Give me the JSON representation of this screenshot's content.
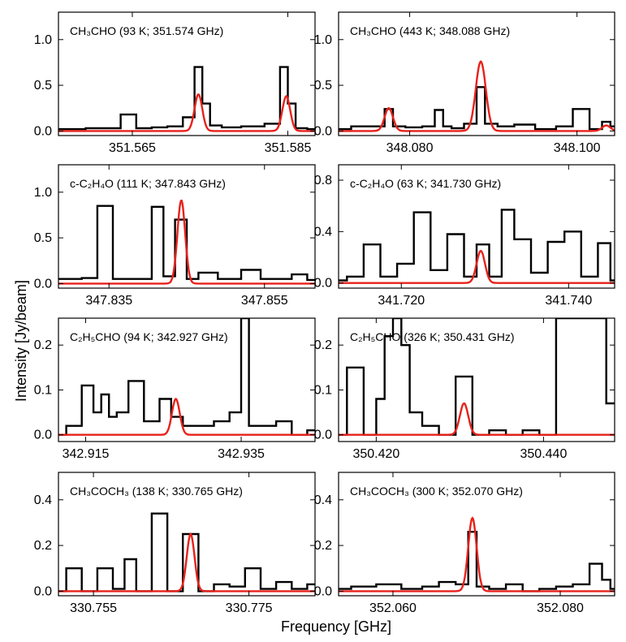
{
  "figure": {
    "xlabel": "Frequency [GHz]",
    "ylabel": "Intensity [Jy/beam]"
  },
  "colors": {
    "observed": "#000000",
    "model": "#e8211b"
  },
  "chart_data": [
    {
      "type": "line",
      "title": "CH₃CHO (93 K; 351.574 GHz)",
      "xlim": [
        351.5555,
        351.5885
      ],
      "ylim": [
        -0.05,
        1.3
      ],
      "xticks": [
        "351.565",
        "351.585"
      ],
      "yticks": [
        "0.0",
        "0.5",
        "1.0"
      ],
      "series": [
        {
          "name": "observed",
          "x": [
            351.5555,
            351.5625,
            351.5645,
            351.5665,
            351.5685,
            351.5705,
            351.5725,
            351.5735,
            351.5745,
            351.5755,
            351.5775,
            351.5805,
            351.5835,
            351.5845,
            351.5855,
            351.5865,
            351.5885
          ],
          "y": [
            0.02,
            0.03,
            0.18,
            0.03,
            0.04,
            0.05,
            0.15,
            0.7,
            0.3,
            0.06,
            0.04,
            0.05,
            0.08,
            0.7,
            0.3,
            0.03,
            0.02
          ]
        },
        {
          "name": "model",
          "lines": [
            {
              "center": 351.5735,
              "peak": 0.4,
              "width": 0.0005
            },
            {
              "center": 351.5848,
              "peak": 0.38,
              "width": 0.0005
            }
          ]
        }
      ]
    },
    {
      "type": "line",
      "title": "CH₃CHO (443 K; 348.088 GHz)",
      "xlim": [
        348.0715,
        348.1045
      ],
      "ylim": [
        -0.05,
        1.3
      ],
      "xticks": [
        "348.080",
        "348.100"
      ],
      "yticks": [
        "0.0",
        "0.5",
        "1.0"
      ],
      "series": [
        {
          "name": "observed",
          "x": [
            348.0715,
            348.0745,
            348.0765,
            348.0775,
            348.0785,
            348.0805,
            348.0825,
            348.0835,
            348.0845,
            348.0855,
            348.0875,
            348.0885,
            348.0895,
            348.0915,
            348.0935,
            348.0965,
            348.0985,
            348.1005,
            348.1025,
            348.1035,
            348.1045
          ],
          "y": [
            0.02,
            0.05,
            0.05,
            0.24,
            0.05,
            0.04,
            0.05,
            0.23,
            0.05,
            0.03,
            0.08,
            0.48,
            0.08,
            0.05,
            0.07,
            0.02,
            0.05,
            0.24,
            0.02,
            0.1,
            0.05
          ]
        },
        {
          "name": "model",
          "lines": [
            {
              "center": 348.0775,
              "peak": 0.25,
              "width": 0.0005
            },
            {
              "center": 348.0885,
              "peak": 0.76,
              "width": 0.0006
            },
            {
              "center": 348.1035,
              "peak": 0.06,
              "width": 0.0005
            }
          ]
        }
      ]
    },
    {
      "type": "line",
      "title": "c-C₂H₄O (111 K; 347.843 GHz)",
      "xlim": [
        347.8285,
        347.8615
      ],
      "ylim": [
        -0.05,
        1.3
      ],
      "xticks": [
        "347.835",
        "347.855"
      ],
      "yticks": [
        "0.0",
        "0.5",
        "1.0"
      ],
      "series": [
        {
          "name": "observed",
          "x": [
            347.8285,
            347.8305,
            347.8325,
            347.8345,
            347.8365,
            347.8395,
            347.8415,
            347.8425,
            347.8445,
            347.8455,
            347.8475,
            347.8505,
            347.8535,
            347.8555,
            347.8575,
            347.8595,
            347.8615
          ],
          "y": [
            0.05,
            0.05,
            0.06,
            0.85,
            0.05,
            0.05,
            0.84,
            0.08,
            0.7,
            0.05,
            0.12,
            0.05,
            0.15,
            0.05,
            0.05,
            0.1,
            0.04
          ]
        },
        {
          "name": "model",
          "lines": [
            {
              "center": 347.8443,
              "peak": 0.91,
              "width": 0.0005
            }
          ]
        }
      ]
    },
    {
      "type": "line",
      "title": "c-C₂H₄O (63 K; 341.730 GHz)",
      "xlim": [
        341.7125,
        341.7455
      ],
      "ylim": [
        -0.04,
        0.92
      ],
      "xticks": [
        "341.720",
        "341.740"
      ],
      "yticks": [
        "0.0",
        "0.4",
        "0.8"
      ],
      "series": [
        {
          "name": "observed",
          "x": [
            341.7125,
            341.7145,
            341.7165,
            341.7185,
            341.7205,
            341.7225,
            341.7245,
            341.7265,
            341.7285,
            341.7295,
            341.7315,
            341.7325,
            341.7345,
            341.7365,
            341.7385,
            341.7405,
            341.7425,
            341.7445,
            341.7455
          ],
          "y": [
            0.02,
            0.05,
            0.3,
            0.05,
            0.15,
            0.55,
            0.1,
            0.38,
            0.05,
            0.3,
            0.05,
            0.57,
            0.34,
            0.08,
            0.32,
            0.4,
            0.05,
            0.31,
            0.02
          ]
        },
        {
          "name": "model",
          "lines": [
            {
              "center": 341.7295,
              "peak": 0.25,
              "width": 0.0005
            }
          ]
        }
      ]
    },
    {
      "type": "line",
      "title": "C₂H₅CHO (94 K; 342.927 GHz)",
      "xlim": [
        342.9115,
        342.9445
      ],
      "ylim": [
        -0.015,
        0.26
      ],
      "xticks": [
        "342.915",
        "342.935"
      ],
      "yticks": [
        "0.0",
        "0.1",
        "0.2"
      ],
      "series": [
        {
          "name": "observed",
          "x": [
            342.9115,
            342.9135,
            342.9155,
            342.9165,
            342.9175,
            342.9185,
            342.9195,
            342.9215,
            342.9235,
            342.9255,
            342.9265,
            342.9285,
            342.9305,
            342.9325,
            342.9345,
            342.9355,
            342.9365,
            342.9385,
            342.9405,
            342.9425,
            342.9445
          ],
          "y": [
            0.0,
            0.02,
            0.11,
            0.05,
            0.09,
            0.04,
            0.05,
            0.12,
            0.03,
            0.08,
            0.04,
            0.02,
            0.02,
            0.03,
            0.05,
            0.26,
            0.02,
            0.02,
            0.03,
            0.0,
            0.01
          ]
        },
        {
          "name": "model",
          "lines": [
            {
              "center": 342.9266,
              "peak": 0.08,
              "width": 0.0005
            }
          ]
        }
      ]
    },
    {
      "type": "line",
      "title": "C₂H₅CHO (326 K; 350.431 GHz)",
      "xlim": [
        350.4155,
        350.4485
      ],
      "ylim": [
        -0.015,
        0.26
      ],
      "xticks": [
        "350.420",
        "350.440"
      ],
      "yticks": [
        "0.0",
        "0.1",
        "0.2"
      ],
      "series": [
        {
          "name": "observed",
          "x": [
            350.4155,
            350.4175,
            350.4195,
            350.4205,
            350.4215,
            350.4225,
            350.4235,
            350.4245,
            350.4265,
            350.4285,
            350.4305,
            350.4325,
            350.4345,
            350.4365,
            350.4385,
            350.4405,
            350.4425,
            350.4445,
            350.4465,
            350.4485
          ],
          "y": [
            0.0,
            0.15,
            0.0,
            0.08,
            0.22,
            0.26,
            0.2,
            0.05,
            0.02,
            0.0,
            0.13,
            0.0,
            0.01,
            0.0,
            0.01,
            0.0,
            0.26,
            0.26,
            0.26,
            0.07
          ]
        },
        {
          "name": "model",
          "lines": [
            {
              "center": 350.4305,
              "peak": 0.07,
              "width": 0.0005
            }
          ]
        }
      ]
    },
    {
      "type": "line",
      "title": "CH₃COCH₃ (138 K; 330.765 GHz)",
      "xlim": [
        330.7505,
        330.7835
      ],
      "ylim": [
        -0.02,
        0.52
      ],
      "xticks": [
        "330.755",
        "330.775"
      ],
      "yticks": [
        "0.0",
        "0.2",
        "0.4"
      ],
      "series": [
        {
          "name": "observed",
          "x": [
            330.7505,
            330.7525,
            330.7545,
            330.7565,
            330.7585,
            330.7595,
            330.7615,
            330.7635,
            330.7655,
            330.7675,
            330.7695,
            330.7715,
            330.7735,
            330.7755,
            330.7775,
            330.7795,
            330.7815,
            330.7835
          ],
          "y": [
            0.0,
            0.1,
            0.0,
            0.1,
            0.01,
            0.14,
            0.0,
            0.34,
            0.0,
            0.25,
            0.0,
            0.03,
            0.02,
            0.1,
            0.01,
            0.04,
            0.01,
            0.03
          ]
        },
        {
          "name": "model",
          "lines": [
            {
              "center": 330.7675,
              "peak": 0.25,
              "width": 0.0005
            }
          ]
        }
      ]
    },
    {
      "type": "line",
      "title": "CH₃COCH₃ (300 K; 352.070 GHz)",
      "xlim": [
        352.0535,
        352.0865
      ],
      "ylim": [
        -0.02,
        0.52
      ],
      "xticks": [
        "352.060",
        "352.080"
      ],
      "yticks": [
        "0.0",
        "0.2",
        "0.4"
      ],
      "series": [
        {
          "name": "observed",
          "x": [
            352.0535,
            352.0565,
            352.0595,
            352.0625,
            352.0645,
            352.0665,
            352.0685,
            352.0695,
            352.0705,
            352.0725,
            352.0745,
            352.0765,
            352.0785,
            352.0805,
            352.0825,
            352.0845,
            352.0855,
            352.0865
          ],
          "y": [
            0.01,
            0.02,
            0.03,
            0.01,
            0.02,
            0.04,
            0.03,
            0.26,
            0.02,
            0.01,
            0.03,
            0.0,
            0.01,
            0.02,
            0.03,
            0.12,
            0.05,
            0.01
          ]
        },
        {
          "name": "model",
          "lines": [
            {
              "center": 352.0695,
              "peak": 0.32,
              "width": 0.0005
            }
          ]
        }
      ]
    }
  ]
}
